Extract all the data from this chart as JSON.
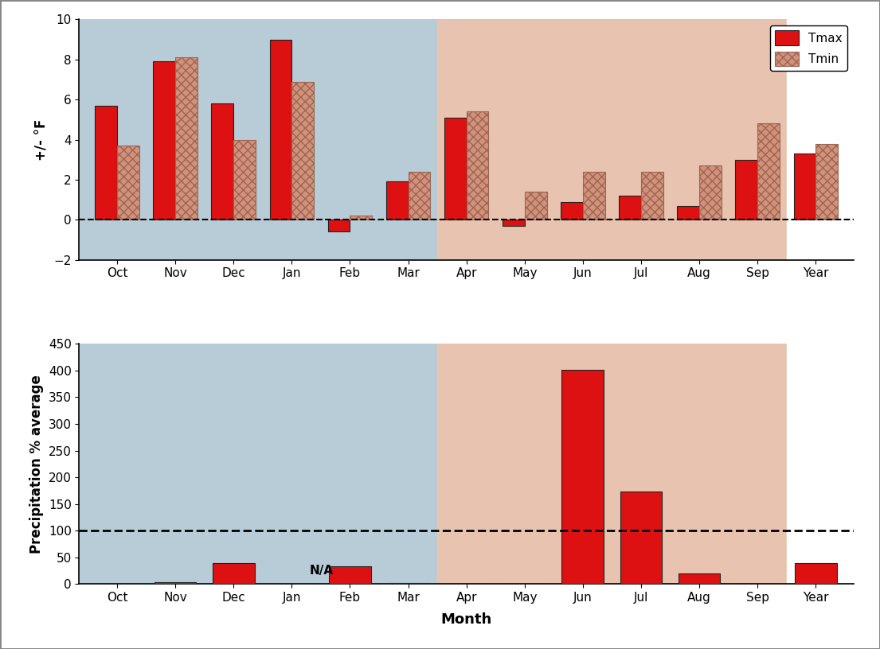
{
  "months": [
    "Oct",
    "Nov",
    "Dec",
    "Jan",
    "Feb",
    "Mar",
    "Apr",
    "May",
    "Jun",
    "Jul",
    "Aug",
    "Sep",
    "Year"
  ],
  "tmax": [
    5.7,
    7.9,
    5.8,
    9.0,
    -0.6,
    1.9,
    5.1,
    -0.3,
    0.9,
    1.2,
    0.7,
    3.0,
    3.3
  ],
  "tmin": [
    3.7,
    8.1,
    4.0,
    6.9,
    0.2,
    2.4,
    5.4,
    1.4,
    2.4,
    2.4,
    2.7,
    4.8,
    3.8
  ],
  "precip": [
    0,
    3,
    40,
    0,
    33,
    2,
    0,
    0,
    402,
    173,
    20,
    0,
    40
  ],
  "precip_na_idx": 3,
  "bar_width": 0.38,
  "temp_ylim": [
    -2,
    10
  ],
  "precip_ylim": [
    0,
    450
  ],
  "temp_yticks": [
    -2,
    0,
    2,
    4,
    6,
    8,
    10
  ],
  "precip_yticks": [
    0,
    50,
    100,
    150,
    200,
    250,
    300,
    350,
    400,
    450
  ],
  "tmax_color": "#dd1111",
  "tmin_color": "#d4917a",
  "tmin_hatch_color": "#996655",
  "precip_color": "#dd1111",
  "winter_bg": "#b8ccd8",
  "summer_bg": "#e8c4b0",
  "year_bg": "#ffffff",
  "xlabel": "Month",
  "ylabel_top": "+/- °F",
  "ylabel_bottom": "Precipitation % average",
  "dpi": 100,
  "fig_border_color": "#888888",
  "fig_border_lw": 2.0
}
